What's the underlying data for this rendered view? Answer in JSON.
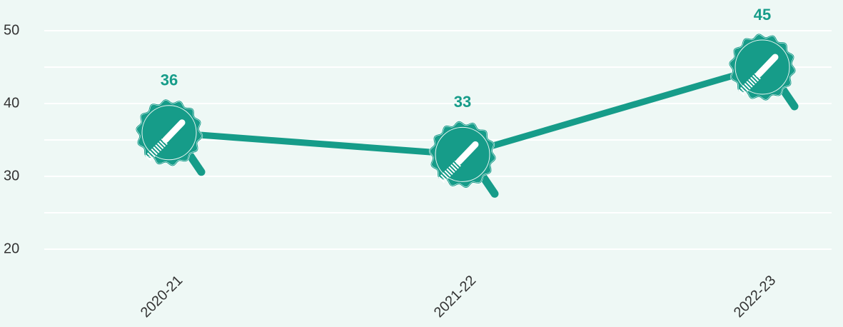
{
  "chart_data": {
    "type": "line",
    "categories": [
      "2020-21",
      "2021-22",
      "2022-23"
    ],
    "values": [
      36,
      33,
      45
    ],
    "color": "#169c89",
    "ylim": [
      20,
      50
    ],
    "yticks": [
      20,
      30,
      40,
      50
    ],
    "grid": true
  }
}
